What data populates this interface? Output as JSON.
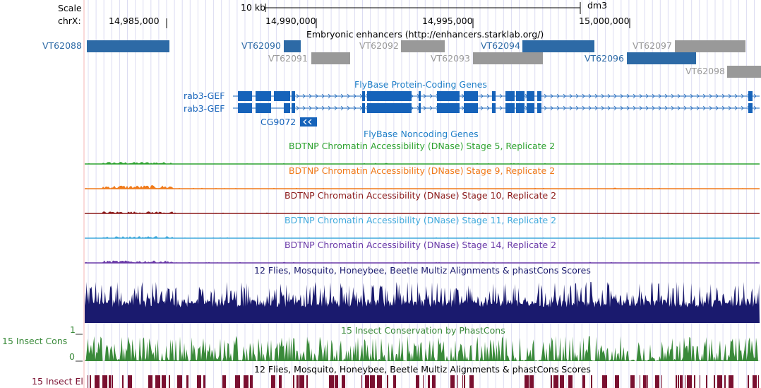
{
  "header": {
    "scale_label": "Scale",
    "chrom_label": "chrX:",
    "scale_bar_label": "10 kb",
    "assembly": "dm3",
    "positions": [
      "14,985,000",
      "14,990,000",
      "14,995,000",
      "15,000,000"
    ]
  },
  "enhancer_track": {
    "title": "Embryonic enhancers (http://enhancers.starklab.org/)",
    "active_color": "#2d6aa6",
    "inactive_color": "#999999",
    "items": [
      {
        "name": "VT62088",
        "active": true
      },
      {
        "name": "VT62090",
        "active": true
      },
      {
        "name": "VT62091",
        "active": false
      },
      {
        "name": "VT62092",
        "active": false
      },
      {
        "name": "VT62093",
        "active": false
      },
      {
        "name": "VT62094",
        "active": true
      },
      {
        "name": "VT62096",
        "active": true
      },
      {
        "name": "VT62097",
        "active": false
      },
      {
        "name": "VT62098",
        "active": false
      }
    ]
  },
  "genes_track": {
    "title": "FlyBase Protein-Coding Genes",
    "color": "#1663ba",
    "genes": [
      "rab3-GEF",
      "rab3-GEF",
      "CG9072"
    ]
  },
  "noncoding_track": {
    "title": "FlyBase Noncoding Genes",
    "color": "#1f7fc8"
  },
  "dnase_tracks": [
    {
      "title": "BDTNP Chromatin Accessibility (DNase) Stage 5, Replicate 2",
      "color": "#2ea330"
    },
    {
      "title": "BDTNP Chromatin Accessibility (DNase) Stage 9, Replicate 2",
      "color": "#f07a1a"
    },
    {
      "title": "BDTNP Chromatin Accessibility (DNase) Stage 10, Replicate 2",
      "color": "#8b1a1a"
    },
    {
      "title": "BDTNP Chromatin Accessibility (DNase) Stage 11, Replicate 2",
      "color": "#3fa9dc"
    },
    {
      "title": "BDTNP Chromatin Accessibility (DNase) Stage 14, Replicate 2",
      "color": "#6a3aa8"
    }
  ],
  "multiz_track": {
    "title": "12 Flies, Mosquito, Honeybee, Beetle Multiz Alignments & phastCons Scores",
    "color": "#1a1a6e"
  },
  "insect_cons": {
    "side_label": "15 Insect Cons",
    "title": "15 Insect Conservation by PhastCons",
    "axis_max": "1",
    "axis_min": "0",
    "color": "#3a8a3a"
  },
  "insect_el": {
    "side_label": "15 Insect El",
    "title": "12 Flies, Mosquito, Honeybee, Beetle Multiz Alignments & phastCons Scores",
    "color": "#7a1030"
  }
}
